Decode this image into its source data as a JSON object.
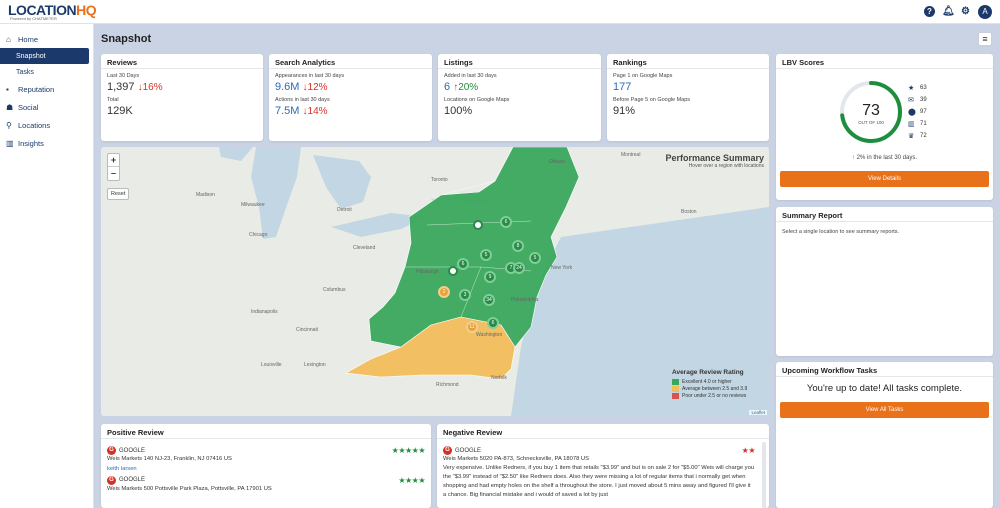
{
  "brand": {
    "name_a": "LOCATION",
    "name_b": "HQ",
    "powered": "Powered by CHATMETER"
  },
  "topbar": {
    "avatar": "A"
  },
  "sidebar": {
    "items": [
      {
        "label": "Home",
        "icon": "home-icon"
      },
      {
        "label": "Snapshot",
        "sub": true,
        "active": true
      },
      {
        "label": "Tasks",
        "sub": true
      },
      {
        "label": "Reputation",
        "icon": "chat-icon"
      },
      {
        "label": "Social",
        "icon": "users-icon"
      },
      {
        "label": "Locations",
        "icon": "pin-icon"
      },
      {
        "label": "Insights",
        "icon": "chart-icon"
      }
    ]
  },
  "page": {
    "title": "Snapshot"
  },
  "reviews": {
    "title": "Reviews",
    "l1": "Last 30 Days",
    "v1": "1,397",
    "c1": "16%",
    "l2": "Total",
    "v2": "129K"
  },
  "search": {
    "title": "Search Analytics",
    "l1": "Appearances in last 30 days",
    "v1": "9.6M",
    "c1": "12%",
    "l2": "Actions in last 30 days",
    "v2": "7.5M",
    "c2": "14%"
  },
  "listings": {
    "title": "Listings",
    "l1": "Added in last 30 days",
    "v1": "6",
    "c1": "20%",
    "l2": "Locations on Google Maps",
    "v2": "100%"
  },
  "rankings": {
    "title": "Rankings",
    "l1": "Page 1 on Google Maps",
    "v1": "177",
    "l2": "Before Page 5 on Google Maps",
    "v2": "91%"
  },
  "lbv": {
    "title": "LBV Scores",
    "score": "73",
    "out_of": "OUT OF 100",
    "score_fraction": 0.73,
    "stats": [
      {
        "icon": "star-icon",
        "glyph": "★",
        "value": "63"
      },
      {
        "icon": "chat-icon",
        "glyph": "✉",
        "value": "39"
      },
      {
        "icon": "pin-icon",
        "glyph": "⬤",
        "value": "97"
      },
      {
        "icon": "bar-chart-icon",
        "glyph": "▥",
        "value": "71"
      },
      {
        "icon": "trophy-icon",
        "glyph": "♛",
        "value": "72"
      }
    ],
    "change": "2%",
    "change_text": "in the last 30 days.",
    "button": "View Details"
  },
  "map": {
    "title": "Performance Summary",
    "subtitle": "Hover over a region with locations",
    "reset": "Reset",
    "zoom_in": "+",
    "zoom_out": "–",
    "legend_title": "Average Review Rating",
    "legend": [
      {
        "label": "Excellent 4.0 or higher",
        "color": "#3aa85c"
      },
      {
        "label": "Average between 2.5 and 3.9",
        "color": "#f2be5c"
      },
      {
        "label": "Poor under 2.5 or no reviews",
        "color": "#d9534f"
      }
    ],
    "attribution": "Leaflet",
    "place_labels": [
      "Madison",
      "Milwaukee",
      "Chicago",
      "Detroit",
      "Toronto",
      "Cleveland",
      "Pittsburgh",
      "Columbus",
      "Indianapolis",
      "Cincinnati",
      "Louisville",
      "Lexington",
      "Richmond",
      "Norfolk",
      "Ottawa",
      "Montreal",
      "Boston",
      "New York",
      "Philadelphia",
      "Washington"
    ],
    "clusters": [
      "6",
      "8",
      "5",
      "7",
      "5",
      "24",
      "6",
      "9",
      "3",
      "34",
      "6",
      "2",
      "11"
    ]
  },
  "summary": {
    "title": "Summary Report",
    "text": "Select a single location to see summary reports."
  },
  "workflow": {
    "title": "Upcoming Workflow Tasks",
    "message": "You're up to date! All tasks complete.",
    "button": "View All Tasks"
  },
  "positive": {
    "title": "Positive Review",
    "items": [
      {
        "source": "GOOGLE",
        "stars": "★★★★★",
        "address": "Weis Markets 140 NJ-23, Franklin, NJ 07416 US",
        "author": "keith larsen"
      },
      {
        "source": "GOOGLE",
        "stars": "★★★★",
        "address": "Weis Markets 500 Pottsville Park Plaza, Pottsville, PA 17901 US"
      }
    ]
  },
  "negative": {
    "title": "Negative Review",
    "source": "GOOGLE",
    "stars": "★★",
    "address": "Weis Markets 5020 PA-873, Schnecksville, PA 18078 US",
    "text": "Very expensive. Unlike Redners, if you buy 1 item that retails \"$3.99\" and but is on sale 2 for \"$5.00\" Weis will charge you the \"$3.99\" instead of \"$2.50\" like Redners does. Also they were missing a lot of regular items that i normally get when shopping and had empty holes on the shelf a throughout the store. I just moved about 5 mins away and figured I'll give it a chance. Big financial mistake and i would of saved a lot by just"
  }
}
